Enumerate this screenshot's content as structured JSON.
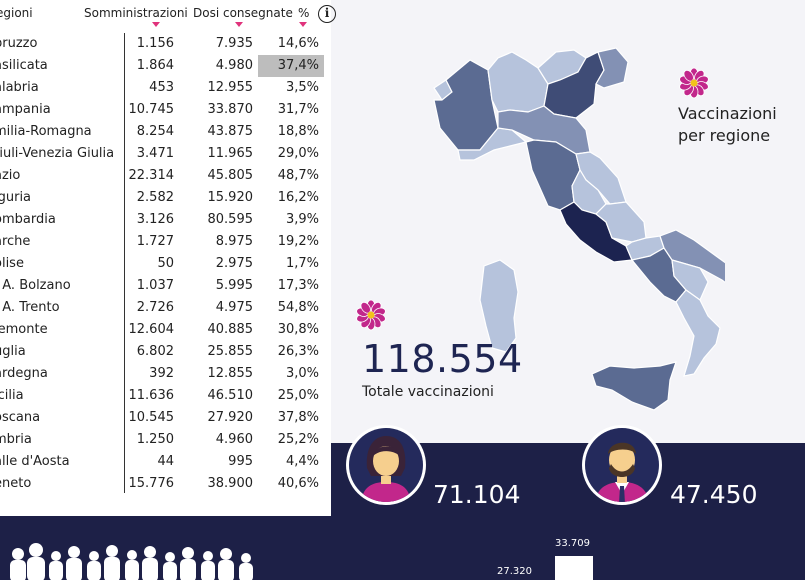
{
  "table": {
    "headers": {
      "region": "egioni",
      "somm": "Somministrazioni",
      "dosi": "Dosi consegnate",
      "pct": "%"
    },
    "rows": [
      {
        "region": "bruzzo",
        "somm": "1.156",
        "dosi": "7.935",
        "pct": "14,6%"
      },
      {
        "region": "asilicata",
        "somm": "1.864",
        "dosi": "4.980",
        "pct": "37,4%"
      },
      {
        "region": "alabria",
        "somm": "453",
        "dosi": "12.955",
        "pct": "3,5%"
      },
      {
        "region": "ampania",
        "somm": "10.745",
        "dosi": "33.870",
        "pct": "31,7%"
      },
      {
        "region": "milia-Romagna",
        "somm": "8.254",
        "dosi": "43.875",
        "pct": "18,8%"
      },
      {
        "region": "riuli-Venezia Giulia",
        "somm": "3.471",
        "dosi": "11.965",
        "pct": "29,0%"
      },
      {
        "region": "azio",
        "somm": "22.314",
        "dosi": "45.805",
        "pct": "48,7%"
      },
      {
        "region": "iguria",
        "somm": "2.582",
        "dosi": "15.920",
        "pct": "16,2%"
      },
      {
        "region": "ombardia",
        "somm": "3.126",
        "dosi": "80.595",
        "pct": "3,9%"
      },
      {
        "region": "arche",
        "somm": "1.727",
        "dosi": "8.975",
        "pct": "19,2%"
      },
      {
        "region": "olise",
        "somm": "50",
        "dosi": "2.975",
        "pct": "1,7%"
      },
      {
        "region": ". A. Bolzano",
        "somm": "1.037",
        "dosi": "5.995",
        "pct": "17,3%"
      },
      {
        "region": ". A. Trento",
        "somm": "2.726",
        "dosi": "4.975",
        "pct": "54,8%"
      },
      {
        "region": "iemonte",
        "somm": "12.604",
        "dosi": "40.885",
        "pct": "30,8%"
      },
      {
        "region": "uglia",
        "somm": "6.802",
        "dosi": "25.855",
        "pct": "26,3%"
      },
      {
        "region": "ardegna",
        "somm": "392",
        "dosi": "12.855",
        "pct": "3,0%"
      },
      {
        "region": "icilia",
        "somm": "11.636",
        "dosi": "46.510",
        "pct": "25,0%"
      },
      {
        "region": "oscana",
        "somm": "10.545",
        "dosi": "27.920",
        "pct": "37,8%"
      },
      {
        "region": "mbria",
        "somm": "1.250",
        "dosi": "4.960",
        "pct": "25,2%"
      },
      {
        "region": "alle d'Aosta",
        "somm": "44",
        "dosi": "995",
        "pct": "4,4%"
      },
      {
        "region": "eneto",
        "somm": "15.776",
        "dosi": "38.900",
        "pct": "40,6%"
      }
    ],
    "selected_row": 1,
    "info_glyph": "i"
  },
  "map": {
    "title_line1": "Vaccinazioni",
    "title_line2": "per regione"
  },
  "totals": {
    "value": "118.554",
    "label": "Totale vaccinazioni"
  },
  "gender": {
    "female_value": "71.104",
    "male_value": "47.450"
  },
  "age_chart": {
    "label_1": "33.709",
    "label_2": "27.320"
  },
  "colors": {
    "navy": "#1d2047",
    "accent_pink": "#c2278b",
    "map_dark": "#1c2350",
    "map_mid": "#6b7a9e",
    "map_light": "#b6c3dc"
  }
}
